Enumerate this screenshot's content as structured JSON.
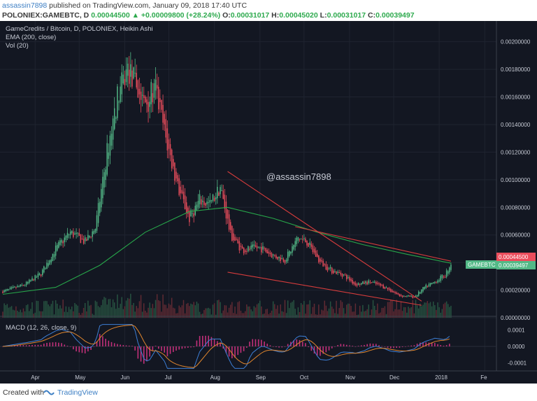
{
  "header": {
    "author": "assassin7898",
    "published": " published on TradingView.com, January 09, 2018 17:40 UTC",
    "symbol": "POLONIEX:GAMEBTC, D",
    "ohlc_open_value": "0.00044500",
    "change": "▲ +0.00009800 (+28.24%)",
    "o_label": "O:",
    "o_value": "0.00031017",
    "h_label": "H:",
    "h_value": "0.00045020",
    "l_label": "L:",
    "l_value": "0.00031017",
    "c_label": "C:",
    "c_value": "0.00039497"
  },
  "legend": {
    "title": "GameCredits / Bitcoin, D, POLONIEX, Heikin Ashi",
    "ema": "EMA (200, close)",
    "vol": "Vol (20)",
    "macd": "MACD (12, 26, close, 9)"
  },
  "watermark": "@assassin7898",
  "price_tags": {
    "price": "0.00044500",
    "symbol": "GAMEBTC",
    "ema_value": "0.00039497"
  },
  "footer": {
    "created_with": "Created with",
    "brand": "TradingView"
  },
  "colors": {
    "background": "#131722",
    "up": "#53b987",
    "down": "#eb4d5c",
    "ema": "#27a64a",
    "trendline": "#d63c3c",
    "macd_line": "#3d7fd6",
    "signal_line": "#e0862e",
    "hist": "#c2307a"
  },
  "chart_data": {
    "type": "candlestick",
    "title": "GameCredits / Bitcoin, D, POLONIEX, Heikin Ashi",
    "x_tick_labels": [
      "Apr",
      "May",
      "Jun",
      "Jul",
      "Aug",
      "Sep",
      "Oct",
      "Nov",
      "Dec",
      "2018",
      "Fe"
    ],
    "y_tick_labels": [
      "0.00200000",
      "0.00180000",
      "0.00160000",
      "0.00140000",
      "0.00120000",
      "0.00100000",
      "0.00080000",
      "0.00060000",
      "0.00040000",
      "0.00020000",
      "0.00000000"
    ],
    "ylim": [
      0,
      0.00212
    ],
    "macd_tick_labels": [
      "0.0001",
      "0.0000",
      "-0.0001"
    ],
    "macd_ylim": [
      -0.00014,
      0.00014
    ],
    "price_anchors": [
      [
        "2017-03-10",
        0.00019
      ],
      [
        "2017-03-25",
        0.00024
      ],
      [
        "2017-04-05",
        0.00032
      ],
      [
        "2017-04-15",
        0.0005
      ],
      [
        "2017-04-25",
        0.00062
      ],
      [
        "2017-05-05",
        0.00055
      ],
      [
        "2017-05-12",
        0.00065
      ],
      [
        "2017-05-20",
        0.0012
      ],
      [
        "2017-05-27",
        0.0016
      ],
      [
        "2017-06-03",
        0.0018
      ],
      [
        "2017-06-08",
        0.0017
      ],
      [
        "2017-06-14",
        0.00155
      ],
      [
        "2017-06-22",
        0.00165
      ],
      [
        "2017-06-30",
        0.00125
      ],
      [
        "2017-07-07",
        0.00095
      ],
      [
        "2017-07-15",
        0.00072
      ],
      [
        "2017-07-22",
        0.00085
      ],
      [
        "2017-07-29",
        0.00082
      ],
      [
        "2017-08-05",
        0.00095
      ],
      [
        "2017-08-12",
        0.0006
      ],
      [
        "2017-08-20",
        0.00049
      ],
      [
        "2017-09-01",
        0.00051
      ],
      [
        "2017-09-10",
        0.00045
      ],
      [
        "2017-09-18",
        0.00042
      ],
      [
        "2017-09-27",
        0.00058
      ],
      [
        "2017-10-03",
        0.00055
      ],
      [
        "2017-10-12",
        0.0004
      ],
      [
        "2017-10-20",
        0.00034
      ],
      [
        "2017-10-28",
        0.00031
      ],
      [
        "2017-11-05",
        0.00024
      ],
      [
        "2017-11-15",
        0.00026
      ],
      [
        "2017-11-25",
        0.00022
      ],
      [
        "2017-12-05",
        0.00016
      ],
      [
        "2017-12-15",
        0.00015
      ],
      [
        "2017-12-22",
        0.00022
      ],
      [
        "2017-12-29",
        0.00026
      ],
      [
        "2018-01-05",
        0.00031
      ],
      [
        "2018-01-09",
        0.000395
      ]
    ],
    "ema_anchors": [
      [
        "2017-03-10",
        0.00017
      ],
      [
        "2017-04-15",
        0.00022
      ],
      [
        "2017-05-15",
        0.00038
      ],
      [
        "2017-06-15",
        0.00062
      ],
      [
        "2017-07-15",
        0.00077
      ],
      [
        "2017-08-10",
        0.0008
      ],
      [
        "2017-09-10",
        0.00072
      ],
      [
        "2017-10-10",
        0.00062
      ],
      [
        "2017-11-10",
        0.00053
      ],
      [
        "2017-12-10",
        0.00046
      ],
      [
        "2018-01-09",
        0.000395
      ]
    ],
    "trendlines": [
      {
        "from": [
          "2017-08-10",
          0.00106
        ],
        "to": [
          "2017-12-20",
          0.00012
        ]
      },
      {
        "from": [
          "2017-09-25",
          0.00066
        ],
        "to": [
          "2018-01-09",
          0.00041
        ]
      },
      {
        "from": [
          "2017-08-10",
          0.00033
        ],
        "to": [
          "2017-12-20",
          9e-05
        ]
      }
    ]
  }
}
